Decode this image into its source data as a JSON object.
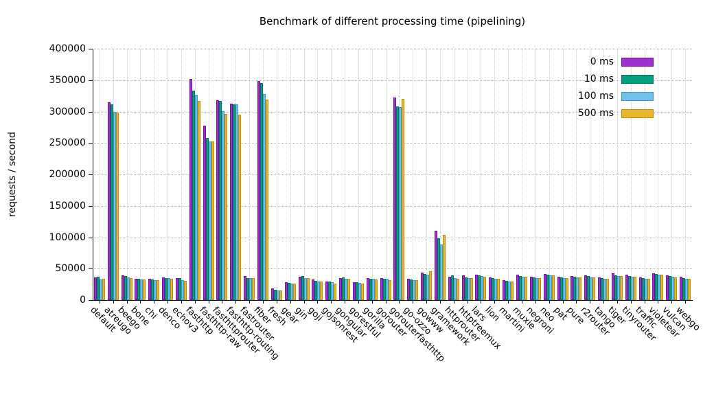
{
  "chart_data": {
    "type": "bar",
    "title": "Benchmark of different processing time (pipelining)",
    "ylabel": "requests / second",
    "xlabel": "",
    "ylim": [
      0,
      400000
    ],
    "yticks": [
      "0",
      "50000",
      "100000",
      "150000",
      "200000",
      "250000",
      "300000",
      "350000",
      "400000"
    ],
    "grid": "dotted horizontal and vertical",
    "legend_position": "top-right",
    "categories": [
      "default",
      "atreugo",
      "beego",
      "bone",
      "chi",
      "denco",
      "echov3",
      "fasthttp",
      "fasthttp-raw",
      "fasthttprouter",
      "fasthttp-routing",
      "fastrouter",
      "fiber",
      "fresh",
      "gear",
      "gin",
      "goji",
      "gojsonrest",
      "gongular",
      "gorestful",
      "gorilla",
      "gorouter",
      "gorouterfasthttp",
      "go-ozzo",
      "gowww",
      "gramework",
      "httprouter",
      "httptreemux",
      "lars",
      "lion",
      "martini",
      "muxie",
      "negroni",
      "neo",
      "pat",
      "pure",
      "r2router",
      "tango",
      "tiger",
      "tinyrouter",
      "traffic",
      "violetear",
      "vulcan",
      "webgo"
    ],
    "series": [
      {
        "name": "0 ms",
        "color": "#9e30d0",
        "edge": "#6f13a2",
        "values": [
          36000,
          315000,
          39000,
          34000,
          34000,
          36500,
          35500,
          352000,
          278000,
          318000,
          313000,
          38000,
          349000,
          19000,
          28000,
          37000,
          33000,
          30000,
          35000,
          28000,
          35000,
          35000,
          322000,
          34000,
          44000,
          110000,
          37000,
          39000,
          40000,
          36000,
          32000,
          40000,
          37000,
          42000,
          37000,
          38000,
          39000,
          36000,
          43000,
          40000,
          36000,
          43000,
          39000,
          37000
        ]
      },
      {
        "name": "10 ms",
        "color": "#00a27e",
        "edge": "#00745a",
        "values": [
          37000,
          311000,
          38000,
          33500,
          33000,
          35500,
          34500,
          333000,
          258000,
          317000,
          312000,
          35500,
          345000,
          16000,
          27000,
          38000,
          31000,
          29000,
          36000,
          28500,
          34000,
          34000,
          308000,
          33000,
          42000,
          98000,
          39000,
          36500,
          39000,
          35000,
          31000,
          38000,
          36000,
          40000,
          36000,
          37000,
          38000,
          35000,
          39000,
          38000,
          35000,
          41000,
          38000,
          35000
        ]
      },
      {
        "name": "100 ms",
        "color": "#6fc3ea",
        "edge": "#3f97c4",
        "values": [
          33000,
          299000,
          36000,
          33000,
          32000,
          34500,
          32000,
          327000,
          253000,
          300000,
          311000,
          34500,
          328000,
          15000,
          26000,
          35000,
          30000,
          28000,
          34000,
          27500,
          33500,
          33500,
          307000,
          32000,
          40000,
          88000,
          35000,
          35500,
          38000,
          34000,
          30000,
          37000,
          35000,
          39000,
          35000,
          36000,
          36500,
          34000,
          38000,
          37000,
          34000,
          40000,
          37000,
          34000
        ]
      },
      {
        "name": "500 ms",
        "color": "#eab62e",
        "edge": "#bd8c09",
        "values": [
          33500,
          298000,
          35000,
          32500,
          31500,
          33500,
          31000,
          317000,
          252000,
          296000,
          295000,
          35500,
          319000,
          15000,
          26000,
          35000,
          29000,
          26500,
          34000,
          26500,
          33000,
          32000,
          320000,
          32000,
          46000,
          104000,
          34000,
          35000,
          37500,
          34000,
          30000,
          37000,
          35000,
          39000,
          35000,
          36000,
          36000,
          34000,
          38000,
          37000,
          34000,
          40000,
          36000,
          34000
        ]
      }
    ]
  }
}
